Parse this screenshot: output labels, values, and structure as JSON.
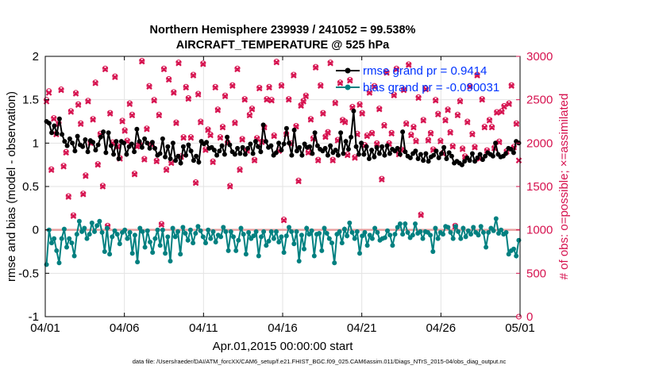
{
  "colors": {
    "rmse": "#000000",
    "bias": "#008080",
    "obs": "#d6124f",
    "legend_text": "#0033ff",
    "zero_line": "#e8a0a0"
  },
  "chart_data": {
    "type": "line",
    "title_line1": "Northern Hemisphere 239939 / 241052 = 99.538%",
    "title_line2": "AIRCRAFT_TEMPERATURE @ 525 hPa",
    "xlabel": "Apr.01,2015 00:00:00 start",
    "ylabel_left": "rmse and bias (model - observation)",
    "ylabel_right": "# of obs: o=possible; ×=assimilated",
    "x_ticks": [
      "04/01",
      "04/06",
      "04/11",
      "04/16",
      "04/21",
      "04/26",
      "05/01"
    ],
    "y_left_ticks": [
      "-1",
      "-0.5",
      "0",
      "0.5",
      "1",
      "1.5",
      "2"
    ],
    "y_right_ticks": [
      "0",
      "500",
      "1000",
      "1500",
      "2000",
      "2500",
      "3000"
    ],
    "ylim_left": [
      -1,
      2
    ],
    "ylim_right": [
      0,
      3000
    ],
    "xlim_days": [
      0,
      30
    ],
    "legend": [
      {
        "name": "rmse grand pr = 0.9414",
        "key": "rmse"
      },
      {
        "name": "bias grand pr = -0.090031",
        "key": "bias"
      }
    ],
    "rmse": [
      1.25,
      1.23,
      1.12,
      1.2,
      1.11,
      1.28,
      1.1,
      1.02,
      0.97,
      1.05,
      1.0,
      0.91,
      1.08,
      0.98,
      0.96,
      1.04,
      0.9,
      1.03,
      1.01,
      0.92,
      0.98,
      1.07,
      1.13,
      0.89,
      1.12,
      0.97,
      0.87,
      1.02,
      0.82,
      1.02,
      1.0,
      0.87,
      0.96,
      0.99,
      0.9,
      1.16,
      1.02,
      0.95,
      1.05,
      1.0,
      0.94,
      1.01,
      0.94,
      0.86,
      0.88,
      1.05,
      0.84,
      0.96,
      0.82,
      1.0,
      0.8,
      0.85,
      0.77,
      0.96,
      0.86,
      0.98,
      0.91,
      0.8,
      0.85,
      0.78,
      1.02,
      0.99,
      1.01,
      0.94,
      0.95,
      0.92,
      0.86,
      0.91,
      0.97,
      0.87,
      1.07,
      0.98,
      0.9,
      0.87,
      0.94,
      0.88,
      0.95,
      0.87,
      0.94,
      0.99,
      0.88,
      1.02,
      0.96,
      0.9,
      1.21,
      1.02,
      0.95,
      0.97,
      0.86,
      0.89,
      1.0,
      0.92,
      0.99,
      1.17,
      1.0,
      0.86,
      1.15,
      0.91,
      0.95,
      0.86,
      0.99,
      0.95,
      0.96,
      0.88,
      1.12,
      0.97,
      0.93,
      0.91,
      0.94,
      0.86,
      0.97,
      0.89,
      0.92,
      0.86,
      1.12,
      0.88,
      1.02,
      0.93,
      1.07,
      1.37,
      0.96,
      0.87,
      1.0,
      0.87,
      0.96,
      0.82,
      0.92,
      0.84,
      0.95,
      0.88,
      0.96,
      0.86,
      0.97,
      0.88,
      0.93,
      0.91,
      0.94,
      0.87,
      1.13,
      0.9,
      0.85,
      0.83,
      0.88,
      0.91,
      0.82,
      0.87,
      0.8,
      0.88,
      0.79,
      0.84,
      0.86,
      0.91,
      0.83,
      0.88,
      0.95,
      0.82,
      0.89,
      0.85,
      0.77,
      0.79,
      0.77,
      0.75,
      0.79,
      0.83,
      0.8,
      0.88,
      0.79,
      0.83,
      0.87,
      0.81,
      0.85,
      0.89,
      0.87,
      0.85,
      1.0,
      0.87,
      0.84,
      0.85,
      0.88,
      0.94,
      0.93,
      0.89,
      1.02,
      1.0
    ],
    "bias": [
      -0.4,
      0.0,
      -0.15,
      -0.1,
      -0.24,
      -0.38,
      -0.1,
      0.01,
      -0.2,
      -0.1,
      -0.15,
      -0.3,
      -0.05,
      0.1,
      -0.02,
      0.02,
      -0.1,
      -0.05,
      0.08,
      -0.02,
      0.05,
      0.1,
      -0.03,
      -0.25,
      0.02,
      -0.28,
      -0.08,
      -0.01,
      -0.05,
      -0.16,
      -0.03,
      0.0,
      -0.1,
      -0.03,
      -0.27,
      -0.06,
      -0.37,
      0.02,
      -0.02,
      -0.2,
      -0.01,
      -0.14,
      -0.26,
      -0.1,
      0.0,
      -0.18,
      0.0,
      -0.27,
      -0.08,
      -0.36,
      0.02,
      -0.08,
      -0.02,
      -0.28,
      0.03,
      -0.04,
      -0.12,
      0.0,
      -0.15,
      -0.04,
      0.04,
      -0.01,
      -0.08,
      -0.15,
      0.0,
      -0.1,
      -0.02,
      -0.14,
      -0.06,
      -0.08,
      0.03,
      -0.02,
      -0.24,
      -0.02,
      -0.08,
      -0.24,
      -0.12,
      0.02,
      -0.05,
      -0.28,
      -0.03,
      -0.1,
      -0.07,
      -0.02,
      -0.3,
      -0.08,
      -0.02,
      -0.18,
      -0.13,
      -0.02,
      -0.1,
      -0.02,
      -0.14,
      -0.08,
      -0.26,
      -0.07,
      0.03,
      -0.02,
      -0.16,
      -0.02,
      -0.36,
      -0.06,
      -0.22,
      0.02,
      -0.05,
      -0.01,
      -0.3,
      -0.05,
      -0.04,
      -0.24,
      0.02,
      -0.04,
      -0.1,
      -0.15,
      -0.38,
      -0.05,
      -0.02,
      -0.15,
      0.01,
      -0.07,
      0.08,
      -0.03,
      -0.1,
      -0.02,
      -0.27,
      -0.07,
      -0.03,
      -0.18,
      -0.06,
      -0.1,
      0.02,
      -0.03,
      -0.12,
      -0.1,
      -0.09,
      -0.01,
      -0.06,
      -0.18,
      -0.05,
      0.03,
      0.07,
      -0.05,
      0.07,
      -0.03,
      -0.09,
      -0.06,
      0.07,
      -0.04,
      -0.02,
      -0.1,
      -0.02,
      -0.03,
      -0.06,
      -0.25,
      0.02,
      -0.1,
      -0.03,
      -0.05,
      0.04,
      0.03,
      -0.03,
      -0.1,
      0.04,
      -0.02,
      -0.1,
      0.02,
      -0.08,
      -0.01,
      -0.05,
      0.03,
      -0.03,
      -0.06,
      0.04,
      -0.03,
      -0.2,
      -0.03,
      0.02,
      -0.01,
      0.13,
      -0.04,
      0.0,
      -0.05,
      -0.03,
      -0.28,
      -0.24,
      -0.22,
      -0.3,
      -0.12
    ],
    "obs_assim": [
      2480,
      2580,
      1690,
      2280,
      2100,
      2220,
      2610,
      1730,
      1890,
      1380,
      2360,
      1160,
      2570,
      2440,
      2220,
      1410,
      1620,
      2480,
      2000,
      2270,
      2690,
      1750,
      2100,
      1500,
      2850,
      1040,
      2340,
      2000,
      2760,
      1960,
      1820,
      2250,
      2140,
      2020,
      2450,
      2320,
      1640,
      1960,
      1980,
      2940,
      1810,
      2160,
      2650,
      1980,
      2490,
      1790,
      2320,
      1060,
      2850,
      1690,
      2730,
      1770,
      2580,
      2230,
      2920,
      1840,
      2060,
      2640,
      2510,
      2060,
      2780,
      1540,
      2560,
      2240,
      2910,
      1920,
      2150,
      2090,
      1780,
      2640,
      2380,
      2060,
      2180,
      2540,
      2000,
      1500,
      2660,
      2230,
      2850,
      1690,
      2040,
      2500,
      1910,
      2320,
      2390,
      1800,
      2050,
      2630,
      2010,
      2180,
      2500,
      2640,
      2490,
      2080,
      2930,
      1910,
      2660,
      1110,
      2100,
      2500,
      1990,
      2780,
      2190,
      1560,
      2430,
      2480,
      2540,
      1890,
      2270,
      2050,
      2870,
      1800,
      2660,
      2340,
      2070,
      2120,
      2920,
      1800,
      2460,
      2030,
      2690,
      2260,
      2240,
      1860,
      2720,
      2410,
      1830,
      2100,
      2440,
      2340,
      1970,
      2080,
      2580,
      2110,
      2650,
      1990,
      2390,
      1580,
      2200,
      2810,
      1990,
      2110,
      2550,
      2850,
      1870,
      1920,
      2610,
      2220,
      2900,
      2090,
      2180,
      2020,
      2520,
      1170,
      2260,
      2620,
      2030,
      2110,
      1920,
      2490,
      2330,
      2020,
      1880,
      2260,
      2380,
      2120,
      1960,
      1040,
      2320,
      2480,
      1930,
      1840,
      2240,
      2650,
      2100,
      1950,
      2780,
      1820,
      2500,
      2180,
      1910,
      2260,
      2180,
      1940,
      2350,
      2010,
      2360,
      2420,
      1900,
      2450,
      2660,
      1950,
      2220,
      1800
    ],
    "obs_possible": [
      2500,
      2600,
      1700,
      2290,
      2110,
      2230,
      2620,
      1740,
      1900,
      1390,
      2370,
      1170,
      2580,
      2450,
      2230,
      1420,
      1630,
      2490,
      2010,
      2280,
      2700,
      1760,
      2110,
      1510,
      2860,
      1050,
      2350,
      2010,
      2770,
      1970,
      1830,
      2260,
      2150,
      2030,
      2460,
      2330,
      1650,
      1970,
      1990,
      2950,
      1820,
      2170,
      2660,
      1990,
      2500,
      1800,
      2330,
      1070,
      2860,
      1700,
      2740,
      1780,
      2590,
      2240,
      2930,
      1850,
      2070,
      2650,
      2520,
      2070,
      2790,
      1550,
      2570,
      2250,
      2920,
      1930,
      2160,
      2100,
      1790,
      2650,
      2390,
      2070,
      2190,
      2550,
      2010,
      1510,
      2670,
      2240,
      2860,
      1700,
      2050,
      2510,
      1920,
      2330,
      2400,
      1810,
      2060,
      2640,
      2020,
      2190,
      2510,
      2650,
      2500,
      2090,
      2940,
      1920,
      2670,
      1120,
      2110,
      2510,
      2000,
      2790,
      2200,
      1570,
      2440,
      2490,
      2550,
      1900,
      2280,
      2060,
      2880,
      1810,
      2670,
      2350,
      2080,
      2130,
      2930,
      1810,
      2470,
      2040,
      2700,
      2270,
      2250,
      1870,
      2730,
      2420,
      1840,
      2110,
      2450,
      2350,
      1980,
      2090,
      2590,
      2120,
      2660,
      2000,
      2400,
      1590,
      2210,
      2820,
      2000,
      2120,
      2560,
      2860,
      1880,
      1930,
      2620,
      2230,
      2910,
      2100,
      2190,
      2030,
      2530,
      1180,
      2270,
      2630,
      2040,
      2120,
      1930,
      2500,
      2340,
      2030,
      1890,
      2270,
      2390,
      2130,
      1970,
      1050,
      2330,
      2490,
      1940,
      1850,
      2250,
      2660,
      2110,
      1960,
      2790,
      1830,
      2510,
      2190,
      1920,
      2270,
      2190,
      1950,
      2360,
      2020,
      2370,
      2430,
      1910,
      2460,
      2670,
      1960,
      2230,
      0
    ]
  },
  "footer": "data file: /Users/raeder/DAI/ATM_forcXX/CAM6_setup/f.e21.FHIST_BGC.f09_025.CAM6assim.011/Diags_NTrS_2015-04/obs_diag_output.nc"
}
